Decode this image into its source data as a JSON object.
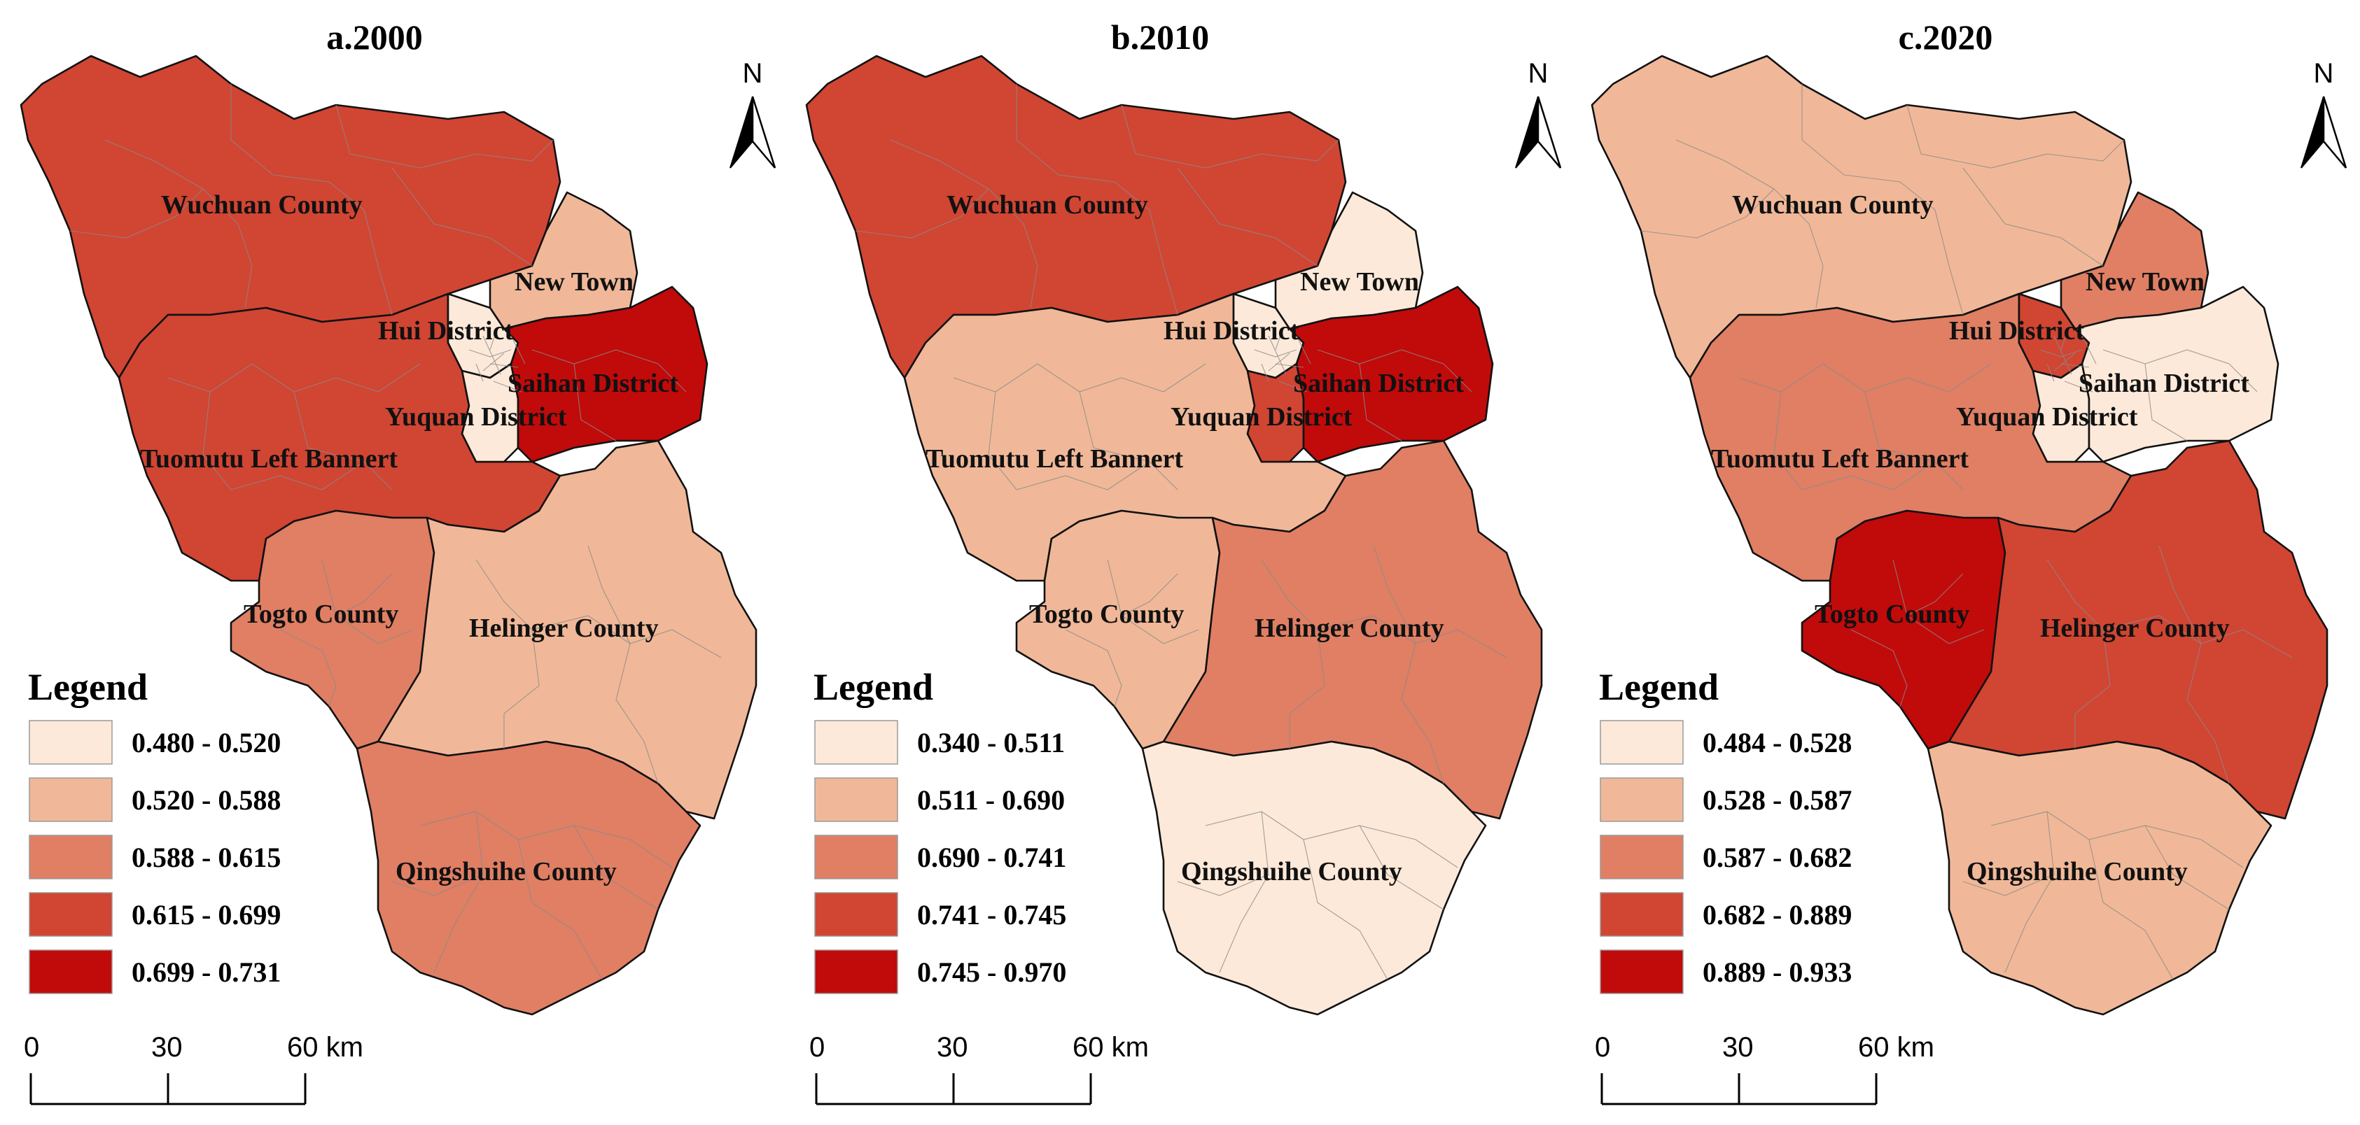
{
  "colors": [
    "#fde9d9",
    "#f0b898",
    "#e07f64",
    "#d14533",
    "#c10a0a"
  ],
  "north_label": "N",
  "legend_title": "Legend",
  "scale_labels": [
    "0",
    "30",
    "60 km"
  ],
  "region_names": {
    "wuchuan": "Wuchuan County",
    "newtown": "New Town",
    "hui": "Hui District",
    "saihan": "Saihan District",
    "yuquan": "Yuquan District",
    "tuomutu": "Tuomutu Left Bannert",
    "togto": "Togto County",
    "helinger": "Helinger County",
    "qingshuihe": "Qingshuihe County"
  },
  "maps": [
    {
      "title": "a.2000",
      "legend": [
        "0.480 - 0.520",
        "0.520 - 0.588",
        "0.588 - 0.615",
        "0.615 - 0.699",
        "0.699 - 0.731"
      ],
      "classes": {
        "wuchuan": 3,
        "newtown": 1,
        "hui": 0,
        "saihan": 4,
        "yuquan": 0,
        "tuomutu": 3,
        "togto": 2,
        "helinger": 1,
        "qingshuihe": 2
      }
    },
    {
      "title": "b.2010",
      "legend": [
        "0.340 - 0.511",
        "0.511 - 0.690",
        "0.690 - 0.741",
        "0.741 - 0.745",
        "0.745 - 0.970"
      ],
      "classes": {
        "wuchuan": 3,
        "newtown": 0,
        "hui": 0,
        "saihan": 4,
        "yuquan": 3,
        "tuomutu": 1,
        "togto": 1,
        "helinger": 2,
        "qingshuihe": 0
      }
    },
    {
      "title": "c.2020",
      "legend": [
        "0.484 - 0.528",
        "0.528 - 0.587",
        "0.587 - 0.682",
        "0.682 - 0.889",
        "0.889 - 0.933"
      ],
      "classes": {
        "wuchuan": 1,
        "newtown": 2,
        "hui": 3,
        "saihan": 0,
        "yuquan": 0,
        "tuomutu": 2,
        "togto": 4,
        "helinger": 3,
        "qingshuihe": 1
      }
    }
  ]
}
